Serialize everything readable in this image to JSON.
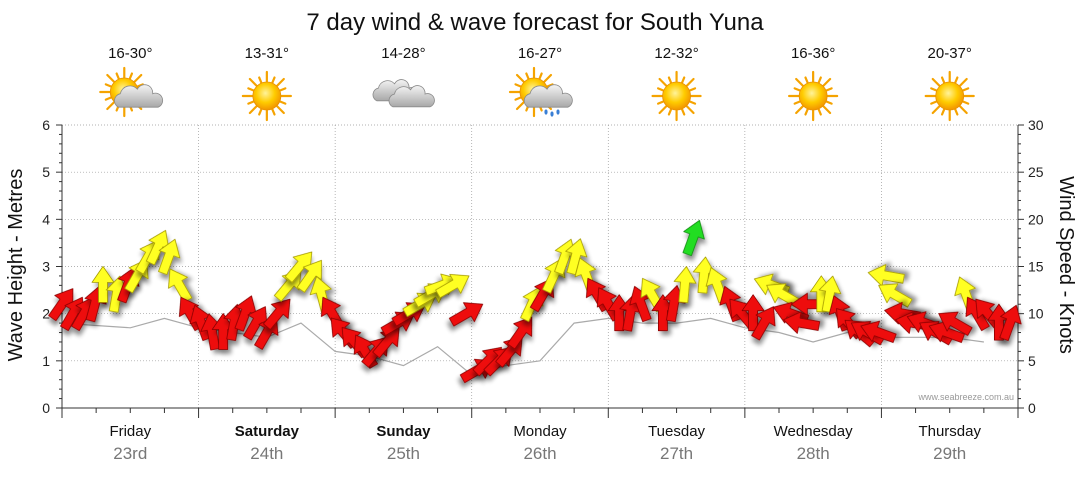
{
  "chart_data": {
    "type": "scatter",
    "title": "7 day wind & wave forecast for South Yuna",
    "y_left_label": "Wave Height - Metres",
    "y_right_label": "Wind Speed - Knots",
    "y_left_range": [
      0,
      6
    ],
    "y_left_ticks": [
      "0",
      "1",
      "2",
      "3",
      "4",
      "5",
      "6"
    ],
    "y_right_range": [
      0,
      30
    ],
    "y_right_ticks": [
      "0",
      "5",
      "10",
      "15",
      "20",
      "25",
      "30"
    ],
    "grid": true,
    "credit": "www.seabreeze.com.au",
    "days": [
      {
        "name": "Friday",
        "date": "23rd",
        "bold": false,
        "temp": "16-30°",
        "icon": "sun-cloud-icon"
      },
      {
        "name": "Saturday",
        "date": "24th",
        "bold": true,
        "temp": "13-31°",
        "icon": "sun-icon"
      },
      {
        "name": "Sunday",
        "date": "25th",
        "bold": true,
        "temp": "14-28°",
        "icon": "cloud-icon"
      },
      {
        "name": "Monday",
        "date": "26th",
        "bold": false,
        "temp": "16-27°",
        "icon": "sun-cloud-rain-icon"
      },
      {
        "name": "Tuesday",
        "date": "27th",
        "bold": false,
        "temp": "12-32°",
        "icon": "sun-icon"
      },
      {
        "name": "Wednesday",
        "date": "28th",
        "bold": false,
        "temp": "16-36°",
        "icon": "sun-icon"
      },
      {
        "name": "Thursday",
        "date": "29th",
        "bold": false,
        "temp": "20-37°",
        "icon": "sun-icon"
      }
    ],
    "wave_height_m": [
      1.8,
      1.75,
      1.7,
      1.9,
      1.7,
      1.6,
      1.5,
      1.8,
      1.2,
      1.1,
      0.9,
      1.3,
      0.7,
      0.9,
      1.0,
      1.8,
      1.9,
      1.8,
      1.8,
      1.9,
      1.7,
      1.6,
      1.4,
      1.6,
      1.5,
      1.5,
      1.5,
      1.4
    ],
    "wind_series": [
      {
        "t": 0.0,
        "kt": 11,
        "deg": 35,
        "color": "red"
      },
      {
        "t": 0.08,
        "kt": 10,
        "deg": 30,
        "color": "red"
      },
      {
        "t": 0.16,
        "kt": 10,
        "deg": 30,
        "color": "red"
      },
      {
        "t": 0.24,
        "kt": 11,
        "deg": 15,
        "color": "red"
      },
      {
        "t": 0.3,
        "kt": 13,
        "deg": 0,
        "color": "yellow"
      },
      {
        "t": 0.4,
        "kt": 12,
        "deg": 10,
        "color": "yellow"
      },
      {
        "t": 0.48,
        "kt": 13,
        "deg": 20,
        "color": "red"
      },
      {
        "t": 0.55,
        "kt": 14,
        "deg": 30,
        "color": "yellow"
      },
      {
        "t": 0.63,
        "kt": 16,
        "deg": 30,
        "color": "yellow"
      },
      {
        "t": 0.7,
        "kt": 17,
        "deg": 25,
        "color": "yellow"
      },
      {
        "t": 0.78,
        "kt": 16,
        "deg": 20,
        "color": "yellow"
      },
      {
        "t": 0.86,
        "kt": 13,
        "deg": 330,
        "color": "yellow"
      },
      {
        "t": 0.94,
        "kt": 10,
        "deg": 330,
        "color": "red"
      },
      {
        "t": 1.02,
        "kt": 9,
        "deg": 340,
        "color": "red"
      },
      {
        "t": 1.1,
        "kt": 8,
        "deg": 350,
        "color": "red"
      },
      {
        "t": 1.18,
        "kt": 8,
        "deg": 0,
        "color": "red"
      },
      {
        "t": 1.26,
        "kt": 9,
        "deg": 10,
        "color": "red"
      },
      {
        "t": 1.34,
        "kt": 10,
        "deg": 20,
        "color": "red"
      },
      {
        "t": 1.42,
        "kt": 9,
        "deg": 30,
        "color": "red"
      },
      {
        "t": 1.5,
        "kt": 8,
        "deg": 30,
        "color": "red"
      },
      {
        "t": 1.58,
        "kt": 10,
        "deg": 40,
        "color": "red"
      },
      {
        "t": 1.66,
        "kt": 13,
        "deg": 40,
        "color": "yellow"
      },
      {
        "t": 1.74,
        "kt": 15,
        "deg": 40,
        "color": "yellow"
      },
      {
        "t": 1.82,
        "kt": 14,
        "deg": 35,
        "color": "yellow"
      },
      {
        "t": 1.9,
        "kt": 12,
        "deg": 345,
        "color": "yellow"
      },
      {
        "t": 1.98,
        "kt": 10,
        "deg": 330,
        "color": "red"
      },
      {
        "t": 2.06,
        "kt": 8,
        "deg": 320,
        "color": "red"
      },
      {
        "t": 2.14,
        "kt": 7,
        "deg": 320,
        "color": "red"
      },
      {
        "t": 2.22,
        "kt": 6,
        "deg": 330,
        "color": "red"
      },
      {
        "t": 2.3,
        "kt": 6,
        "deg": 40,
        "color": "red"
      },
      {
        "t": 2.38,
        "kt": 7,
        "deg": 40,
        "color": "red"
      },
      {
        "t": 2.46,
        "kt": 9,
        "deg": 60,
        "color": "red"
      },
      {
        "t": 2.54,
        "kt": 10,
        "deg": 60,
        "color": "red"
      },
      {
        "t": 2.62,
        "kt": 11,
        "deg": 60,
        "color": "yellow"
      },
      {
        "t": 2.7,
        "kt": 12,
        "deg": 60,
        "color": "yellow"
      },
      {
        "t": 2.78,
        "kt": 13,
        "deg": 70,
        "color": "yellow"
      },
      {
        "t": 2.86,
        "kt": 13,
        "deg": 60,
        "color": "yellow"
      },
      {
        "t": 2.96,
        "kt": 10,
        "deg": 60,
        "color": "red"
      },
      {
        "t": 3.04,
        "kt": 4,
        "deg": 60,
        "color": "red"
      },
      {
        "t": 3.12,
        "kt": 5,
        "deg": 45,
        "color": "red"
      },
      {
        "t": 3.2,
        "kt": 5,
        "deg": 45,
        "color": "red"
      },
      {
        "t": 3.28,
        "kt": 6,
        "deg": 40,
        "color": "red"
      },
      {
        "t": 3.36,
        "kt": 8,
        "deg": 35,
        "color": "red"
      },
      {
        "t": 3.44,
        "kt": 11,
        "deg": 25,
        "color": "yellow"
      },
      {
        "t": 3.52,
        "kt": 12,
        "deg": 30,
        "color": "red"
      },
      {
        "t": 3.6,
        "kt": 14,
        "deg": 25,
        "color": "yellow"
      },
      {
        "t": 3.68,
        "kt": 16,
        "deg": 20,
        "color": "yellow"
      },
      {
        "t": 3.76,
        "kt": 16,
        "deg": 15,
        "color": "yellow"
      },
      {
        "t": 3.84,
        "kt": 14,
        "deg": 340,
        "color": "yellow"
      },
      {
        "t": 3.92,
        "kt": 12,
        "deg": 330,
        "color": "red"
      },
      {
        "t": 4.0,
        "kt": 11,
        "deg": 330,
        "color": "red"
      },
      {
        "t": 4.08,
        "kt": 10,
        "deg": 0,
        "color": "red"
      },
      {
        "t": 4.16,
        "kt": 10,
        "deg": 10,
        "color": "red"
      },
      {
        "t": 4.24,
        "kt": 11,
        "deg": 340,
        "color": "red"
      },
      {
        "t": 4.32,
        "kt": 12,
        "deg": 330,
        "color": "yellow"
      },
      {
        "t": 4.4,
        "kt": 10,
        "deg": 0,
        "color": "red"
      },
      {
        "t": 4.48,
        "kt": 11,
        "deg": 10,
        "color": "red"
      },
      {
        "t": 4.56,
        "kt": 13,
        "deg": 5,
        "color": "yellow"
      },
      {
        "t": 4.62,
        "kt": 18,
        "deg": 20,
        "color": "green"
      },
      {
        "t": 4.7,
        "kt": 14,
        "deg": 5,
        "color": "yellow"
      },
      {
        "t": 4.8,
        "kt": 13,
        "deg": 340,
        "color": "yellow"
      },
      {
        "t": 4.9,
        "kt": 11,
        "deg": 340,
        "color": "red"
      },
      {
        "t": 4.98,
        "kt": 10,
        "deg": 320,
        "color": "red"
      },
      {
        "t": 5.06,
        "kt": 10,
        "deg": 0,
        "color": "red"
      },
      {
        "t": 5.14,
        "kt": 9,
        "deg": 30,
        "color": "red"
      },
      {
        "t": 5.2,
        "kt": 13,
        "deg": 290,
        "color": "yellow"
      },
      {
        "t": 5.28,
        "kt": 12,
        "deg": 300,
        "color": "yellow"
      },
      {
        "t": 5.34,
        "kt": 10,
        "deg": 290,
        "color": "red"
      },
      {
        "t": 5.42,
        "kt": 9,
        "deg": 280,
        "color": "red"
      },
      {
        "t": 5.48,
        "kt": 11,
        "deg": 270,
        "color": "red"
      },
      {
        "t": 5.56,
        "kt": 12,
        "deg": 0,
        "color": "yellow"
      },
      {
        "t": 5.62,
        "kt": 12,
        "deg": 10,
        "color": "yellow"
      },
      {
        "t": 5.7,
        "kt": 10,
        "deg": 340,
        "color": "red"
      },
      {
        "t": 5.76,
        "kt": 9,
        "deg": 320,
        "color": "red"
      },
      {
        "t": 5.84,
        "kt": 8,
        "deg": 310,
        "color": "red"
      },
      {
        "t": 5.9,
        "kt": 8,
        "deg": 300,
        "color": "red"
      },
      {
        "t": 5.98,
        "kt": 8,
        "deg": 290,
        "color": "red"
      },
      {
        "t": 6.04,
        "kt": 14,
        "deg": 280,
        "color": "yellow"
      },
      {
        "t": 6.1,
        "kt": 12,
        "deg": 300,
        "color": "yellow"
      },
      {
        "t": 6.16,
        "kt": 10,
        "deg": 280,
        "color": "red"
      },
      {
        "t": 6.24,
        "kt": 9,
        "deg": 280,
        "color": "red"
      },
      {
        "t": 6.32,
        "kt": 9,
        "deg": 290,
        "color": "red"
      },
      {
        "t": 6.4,
        "kt": 8,
        "deg": 300,
        "color": "red"
      },
      {
        "t": 6.48,
        "kt": 8,
        "deg": 290,
        "color": "red"
      },
      {
        "t": 6.54,
        "kt": 9,
        "deg": 300,
        "color": "red"
      },
      {
        "t": 6.62,
        "kt": 12,
        "deg": 340,
        "color": "yellow"
      },
      {
        "t": 6.7,
        "kt": 10,
        "deg": 330,
        "color": "red"
      },
      {
        "t": 6.78,
        "kt": 10,
        "deg": 320,
        "color": "red"
      },
      {
        "t": 6.86,
        "kt": 9,
        "deg": 0,
        "color": "red"
      },
      {
        "t": 6.94,
        "kt": 9,
        "deg": 20,
        "color": "red"
      }
    ],
    "colors": {
      "red": "#ee1111",
      "yellow": "#ffff22",
      "green": "#22dd22",
      "grid": "#999999",
      "wave_line": "#aaaaaa"
    }
  }
}
